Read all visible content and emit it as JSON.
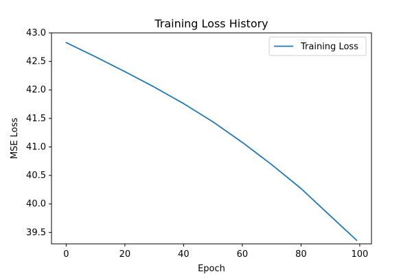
{
  "chart_data": {
    "type": "line",
    "title": "Training Loss History",
    "xlabel": "Epoch",
    "ylabel": "MSE Loss",
    "xlim": [
      -5,
      104
    ],
    "ylim": [
      39.3,
      43.0
    ],
    "x_ticks": [
      0,
      20,
      40,
      60,
      80,
      100
    ],
    "y_ticks": [
      39.5,
      40.0,
      40.5,
      41.0,
      41.5,
      42.0,
      42.5,
      43.0
    ],
    "x_tick_labels": [
      "0",
      "20",
      "40",
      "60",
      "80",
      "100"
    ],
    "y_tick_labels": [
      "39.5",
      "40.0",
      "40.5",
      "41.0",
      "41.5",
      "42.0",
      "42.5",
      "43.0"
    ],
    "grid": false,
    "legend_position": "top-right",
    "series": [
      {
        "name": "Training Loss",
        "color": "#1f77b4",
        "x": [
          0,
          10,
          20,
          30,
          40,
          50,
          60,
          70,
          80,
          90,
          99
        ],
        "y": [
          42.83,
          42.58,
          42.32,
          42.05,
          41.76,
          41.44,
          41.08,
          40.69,
          40.27,
          39.79,
          39.36
        ]
      }
    ]
  }
}
